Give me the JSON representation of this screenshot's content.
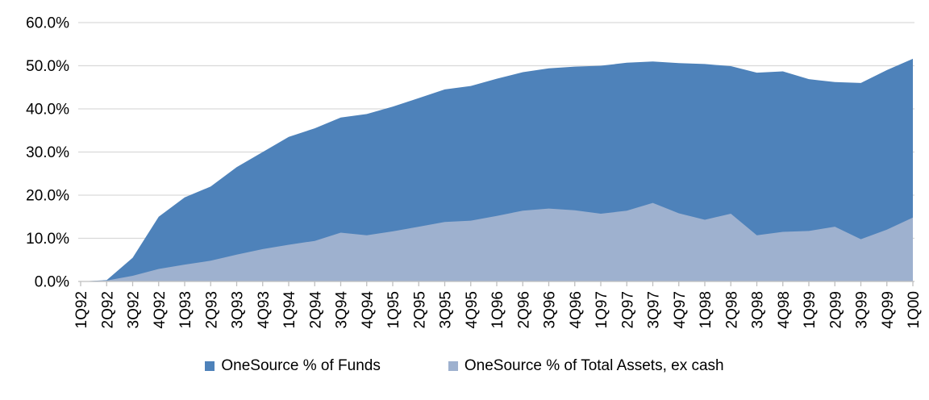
{
  "chart_data": {
    "type": "area",
    "title": "",
    "xlabel": "",
    "ylabel": "",
    "ylim": [
      0,
      60
    ],
    "grid": true,
    "legend_position": "bottom",
    "y_tick_labels": [
      "0.0%",
      "10.0%",
      "20.0%",
      "30.0%",
      "40.0%",
      "50.0%",
      "60.0%"
    ],
    "y_tick_values": [
      0,
      10,
      20,
      30,
      40,
      50,
      60
    ],
    "categories": [
      "1Q92",
      "2Q92",
      "3Q92",
      "4Q92",
      "1Q93",
      "2Q93",
      "3Q93",
      "4Q93",
      "1Q94",
      "2Q94",
      "3Q94",
      "4Q94",
      "1Q95",
      "2Q95",
      "3Q95",
      "4Q95",
      "1Q96",
      "2Q96",
      "3Q96",
      "4Q96",
      "1Q97",
      "2Q97",
      "3Q97",
      "4Q97",
      "1Q98",
      "2Q98",
      "3Q98",
      "4Q98",
      "1Q99",
      "2Q99",
      "3Q99",
      "4Q99",
      "1Q00"
    ],
    "series": [
      {
        "name": "OneSource % of Funds",
        "color": "#4E82BA",
        "values": [
          0.0,
          0.3,
          5.5,
          15.0,
          19.5,
          22.0,
          26.5,
          30.0,
          33.5,
          35.5,
          38.0,
          38.8,
          40.5,
          42.5,
          44.5,
          45.3,
          47.0,
          48.5,
          49.4,
          49.8,
          50.0,
          50.7,
          51.0,
          50.6,
          50.4,
          49.9,
          48.4,
          48.7,
          46.9,
          46.2,
          46.0,
          49.0,
          51.6
        ]
      },
      {
        "name": "OneSource % of Total Assets, ex cash",
        "color": "#9EB1CF",
        "values": [
          0.0,
          0.2,
          1.3,
          2.9,
          3.9,
          4.8,
          6.2,
          7.5,
          8.5,
          9.4,
          11.3,
          10.7,
          11.6,
          12.7,
          13.8,
          14.1,
          15.2,
          16.4,
          16.9,
          16.5,
          15.7,
          16.4,
          18.2,
          15.8,
          14.3,
          15.7,
          10.7,
          11.5,
          11.7,
          12.7,
          9.8,
          12.0,
          14.8
        ]
      }
    ]
  },
  "style": {
    "gridline_color": "#D9D9D9",
    "axis_color": "#BFBFBF",
    "text_color": "#000000"
  }
}
